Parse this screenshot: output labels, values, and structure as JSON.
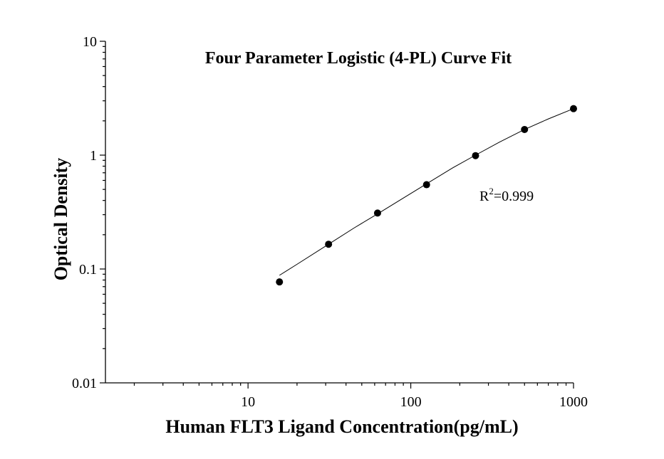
{
  "chart_data": {
    "type": "scatter",
    "title": "Four Parameter Logistic (4-PL) Curve Fit",
    "xlabel": "Human FLT3 Ligand Concentration(pg/mL)",
    "ylabel": "Optical Density",
    "x_scale": "log",
    "y_scale": "log",
    "xlim": [
      1.33,
      1000
    ],
    "ylim": [
      0.01,
      10
    ],
    "x_tick_labels": [
      "10",
      "100",
      "1000"
    ],
    "y_tick_labels": [
      "0.01",
      "0.1",
      "1",
      "10"
    ],
    "grid": false,
    "legend": "none",
    "points": {
      "x": [
        15.6,
        31.25,
        62.5,
        125,
        250,
        500,
        1000
      ],
      "y": [
        0.077,
        0.165,
        0.31,
        0.55,
        0.99,
        1.68,
        2.56
      ]
    },
    "fit": {
      "model": "4-PL",
      "x": [
        15.6,
        20,
        31.25,
        45,
        62.5,
        90,
        125,
        180,
        250,
        350,
        500,
        700,
        1000
      ],
      "y": [
        0.088,
        0.11,
        0.165,
        0.23,
        0.305,
        0.42,
        0.56,
        0.77,
        1.0,
        1.3,
        1.68,
        2.08,
        2.56
      ]
    },
    "annotation": {
      "r_base": "R",
      "r_sup": "2",
      "r_value": "=0.999"
    }
  }
}
